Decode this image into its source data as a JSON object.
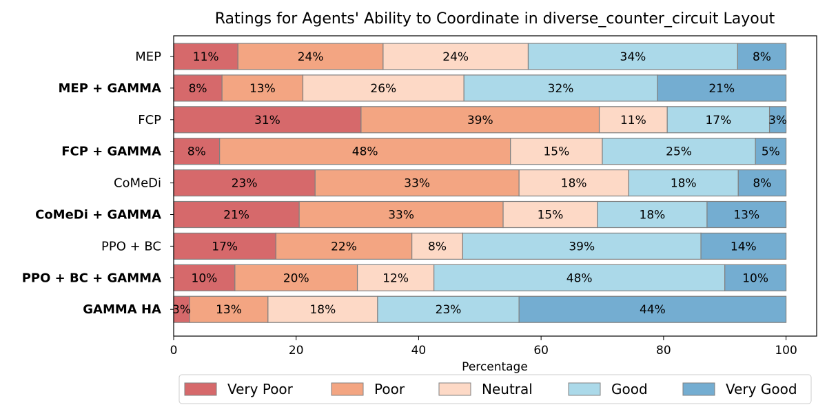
{
  "chart_data": {
    "type": "bar",
    "orientation": "horizontal",
    "stacked": true,
    "title": "Ratings for Agents' Ability to Coordinate in diverse_counter_circuit Layout",
    "xlabel": "Percentage",
    "ylabel": "",
    "xlim": [
      0,
      105
    ],
    "xticks": [
      0,
      20,
      40,
      60,
      80,
      100
    ],
    "grid": false,
    "legend_position": "bottom-center",
    "categories": [
      "MEP",
      "MEP + GAMMA",
      "FCP",
      "FCP + GAMMA",
      "CoMeDi",
      "CoMeDi + GAMMA",
      "PPO + BC",
      "PPO + BC + GAMMA",
      "GAMMA HA"
    ],
    "bold_categories": [
      "MEP + GAMMA",
      "FCP + GAMMA",
      "CoMeDi + GAMMA",
      "PPO + BC + GAMMA",
      "GAMMA HA"
    ],
    "series": [
      {
        "name": "Very Poor",
        "color": "#d6696b",
        "values": [
          10.5,
          7.9,
          30.6,
          7.5,
          23.1,
          20.5,
          16.7,
          10.0,
          2.6
        ],
        "labels": [
          "11%",
          "8%",
          "31%",
          "8%",
          "23%",
          "21%",
          "17%",
          "10%",
          "3%"
        ]
      },
      {
        "name": "Poor",
        "color": "#f3a582",
        "values": [
          23.7,
          13.2,
          38.9,
          47.5,
          33.3,
          33.3,
          22.2,
          20.0,
          12.8
        ],
        "labels": [
          "24%",
          "13%",
          "39%",
          "48%",
          "33%",
          "33%",
          "22%",
          "20%",
          "13%"
        ]
      },
      {
        "name": "Neutral",
        "color": "#fdd9c6",
        "values": [
          23.7,
          26.3,
          11.1,
          15.0,
          17.9,
          15.4,
          8.3,
          12.5,
          17.9
        ],
        "labels": [
          "24%",
          "26%",
          "11%",
          "15%",
          "18%",
          "15%",
          "8%",
          "12%",
          "18%"
        ]
      },
      {
        "name": "Good",
        "color": "#abd9e9",
        "values": [
          34.2,
          31.6,
          16.7,
          25.0,
          17.9,
          17.9,
          38.9,
          47.5,
          23.1
        ],
        "labels": [
          "34%",
          "32%",
          "17%",
          "25%",
          "18%",
          "18%",
          "39%",
          "48%",
          "23%"
        ]
      },
      {
        "name": "Very Good",
        "color": "#74add1",
        "values": [
          7.9,
          21.0,
          2.7,
          5.0,
          7.8,
          12.9,
          13.9,
          10.0,
          43.6
        ],
        "labels": [
          "8%",
          "21%",
          "3%",
          "5%",
          "8%",
          "13%",
          "14%",
          "10%",
          "44%"
        ]
      }
    ]
  }
}
